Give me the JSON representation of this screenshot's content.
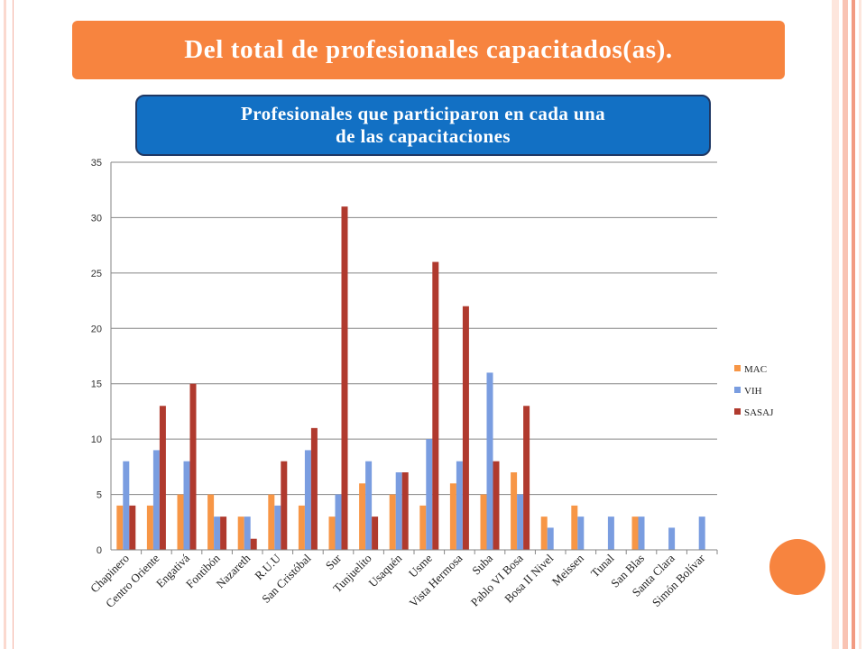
{
  "slide": {
    "title": "Del total de profesionales capacitados(as).",
    "subtitle_line1": "Profesionales que participaron en cada una",
    "subtitle_line2": "de las capacitaciones"
  },
  "colors": {
    "title_banner": "#f7843f",
    "subtitle_box": "#1270c4",
    "subtitle_border": "#1f3864",
    "accent_circle": "#f7843f",
    "frame_stripes": [
      "#fde6dd",
      "#f9c3b3",
      "#f29b82"
    ]
  },
  "chart_data": {
    "type": "bar",
    "title": "",
    "xlabel": "",
    "ylabel": "",
    "ylim": [
      0,
      35
    ],
    "yticks": [
      0,
      5,
      10,
      15,
      20,
      25,
      30,
      35
    ],
    "grid": true,
    "legend_position": "right",
    "categories": [
      "Chapinero",
      "Centro Oriente",
      "Engativá",
      "Fontibón",
      "Nazareth",
      "R.U.U",
      "San Cristóbal",
      "Sur",
      "Tunjuelito",
      "Usaquén",
      "Usme",
      "Vista Hermosa",
      "Suba",
      "Pablo VI Bosa",
      "Bosa II Nivel",
      "Meissen",
      "Tunal",
      "San Blas",
      "Santa Clara",
      "Simón Bolívar"
    ],
    "series": [
      {
        "name": "MAC",
        "color": "#f79646",
        "values": [
          4,
          4,
          5,
          5,
          3,
          5,
          4,
          3,
          6,
          5,
          4,
          6,
          5,
          7,
          3,
          4,
          0,
          3,
          0,
          0
        ]
      },
      {
        "name": "VIH",
        "color": "#7a9de0",
        "values": [
          8,
          9,
          8,
          3,
          3,
          4,
          9,
          5,
          8,
          7,
          10,
          8,
          16,
          5,
          2,
          3,
          3,
          3,
          2,
          3
        ]
      },
      {
        "name": "SASAJ",
        "color": "#b03a2e",
        "values": [
          4,
          13,
          15,
          3,
          1,
          8,
          11,
          31,
          3,
          7,
          26,
          22,
          8,
          13,
          0,
          0,
          0,
          0,
          0,
          0
        ]
      }
    ]
  }
}
